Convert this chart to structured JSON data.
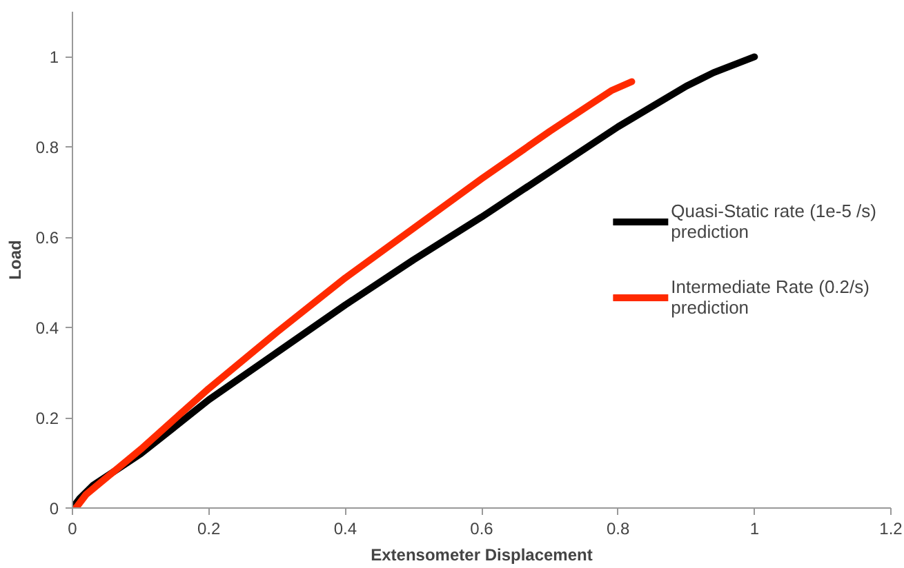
{
  "chart_data": {
    "type": "line",
    "xlabel": "Extensometer Displacement",
    "ylabel": "Load",
    "xlim": [
      0,
      1.2
    ],
    "ylim": [
      0,
      1.1
    ],
    "xticks": [
      0,
      0.2,
      0.4,
      0.6,
      0.8,
      1,
      1.2
    ],
    "yticks": [
      0,
      0.2,
      0.4,
      0.6,
      0.8,
      1
    ],
    "grid": false,
    "legend": "right",
    "line_style": "solid",
    "series": [
      {
        "name": "Quasi-Static rate (1e-5 /s) prediction",
        "color": "#000000",
        "x": [
          0,
          0.01,
          0.03,
          0.1,
          0.2,
          0.3,
          0.4,
          0.5,
          0.6,
          0.7,
          0.8,
          0.9,
          0.94,
          1
        ],
        "values": [
          0,
          0.02,
          0.05,
          0.12,
          0.24,
          0.345,
          0.45,
          0.55,
          0.645,
          0.745,
          0.845,
          0.935,
          0.965,
          1
        ]
      },
      {
        "name": "Intermediate Rate (0.2/s) prediction",
        "color": "#ff2a00",
        "x": [
          0.005,
          0.02,
          0.1,
          0.2,
          0.3,
          0.4,
          0.5,
          0.6,
          0.7,
          0.76,
          0.79,
          0.82
        ],
        "values": [
          0,
          0.03,
          0.13,
          0.265,
          0.39,
          0.51,
          0.62,
          0.73,
          0.835,
          0.895,
          0.925,
          0.945
        ]
      }
    ]
  }
}
